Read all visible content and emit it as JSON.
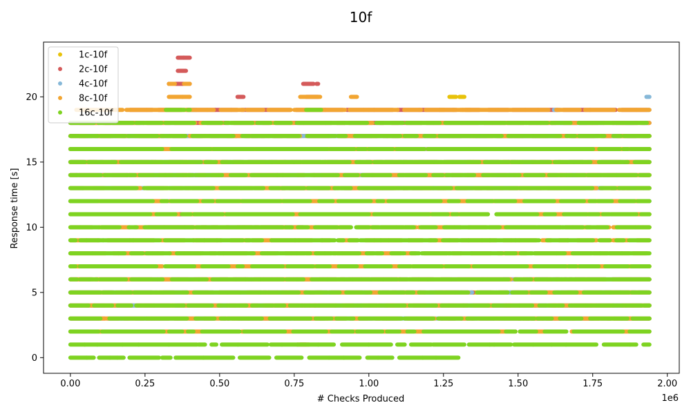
{
  "chart_data": {
    "type": "scatter",
    "title": "10f",
    "xlabel": "# Checks Produced",
    "ylabel": "Response time [s]",
    "x_offset_text": "1e6",
    "x_scale_factor": 1000000,
    "xlim": [
      -90000,
      2040000
    ],
    "ylim": [
      -1.2,
      24.2
    ],
    "x_ticks": [
      0,
      250000,
      500000,
      750000,
      1000000,
      1250000,
      1500000,
      1750000,
      2000000
    ],
    "x_tick_labels": [
      "0.00",
      "0.25",
      "0.50",
      "0.75",
      "1.00",
      "1.25",
      "1.50",
      "1.75",
      "2.00"
    ],
    "y_ticks": [
      0,
      5,
      10,
      15,
      20
    ],
    "y_tick_labels": [
      "0",
      "5",
      "10",
      "15",
      "20"
    ],
    "grid": false,
    "legend_position": "top-left",
    "series": [
      {
        "name": "1c-10f",
        "color": "#e8c20a",
        "segments": [
          [
            0,
            1940000,
            16
          ],
          [
            0,
            1940000,
            17
          ],
          [
            0,
            1940000,
            15
          ],
          [
            0,
            1940000,
            4
          ],
          [
            600000,
            1940000,
            5
          ],
          [
            1200000,
            1940000,
            14
          ],
          [
            1500000,
            1940000,
            3
          ],
          [
            1270000,
            1320000,
            20
          ],
          [
            330000,
            390000,
            21
          ]
        ]
      },
      {
        "name": "2c-10f",
        "color": "#d45a5a",
        "segments": [
          [
            360000,
            400000,
            23
          ],
          [
            360000,
            400000,
            22
          ],
          [
            330000,
            400000,
            21
          ],
          [
            780000,
            830000,
            21
          ],
          [
            790000,
            830000,
            20
          ],
          [
            560000,
            580000,
            20
          ],
          [
            0,
            1940000,
            18
          ],
          [
            0,
            1940000,
            17
          ],
          [
            0,
            1940000,
            16
          ],
          [
            0,
            1940000,
            15
          ],
          [
            0,
            1940000,
            14
          ],
          [
            0,
            1940000,
            5
          ],
          [
            0,
            1940000,
            4
          ],
          [
            0,
            1940000,
            6
          ],
          [
            200000,
            1940000,
            19
          ],
          [
            260000,
            1940000,
            12
          ],
          [
            260000,
            780000,
            10
          ],
          [
            620000,
            640000,
            7
          ],
          [
            0,
            1940000,
            3
          ],
          [
            770000,
            790000,
            1
          ],
          [
            320000,
            840000,
            11
          ],
          [
            700000,
            1900000,
            13
          ]
        ]
      },
      {
        "name": "4c-10f",
        "color": "#86b8d8",
        "segments": [
          [
            1600000,
            1740000,
            18
          ],
          [
            1620000,
            1640000,
            19
          ],
          [
            1860000,
            1940000,
            18
          ],
          [
            1930000,
            1940000,
            20
          ],
          [
            1930000,
            1940000,
            19
          ],
          [
            1780000,
            1860000,
            11
          ],
          [
            1450000,
            1940000,
            6
          ],
          [
            1870000,
            1900000,
            7
          ],
          [
            1600000,
            1640000,
            7
          ],
          [
            0,
            1940000,
            16
          ],
          [
            0,
            1940000,
            14
          ],
          [
            0,
            1940000,
            5
          ],
          [
            0,
            1940000,
            12
          ],
          [
            400000,
            420000,
            19
          ],
          [
            30000,
            1940000,
            17
          ],
          [
            0,
            1940000,
            15
          ],
          [
            0,
            1940000,
            3
          ],
          [
            0,
            1940000,
            4
          ],
          [
            0,
            1940000,
            13
          ]
        ]
      },
      {
        "name": "8c-10f",
        "color": "#f2a531",
        "segments": [
          [
            30000,
            1940000,
            18
          ],
          [
            30000,
            1940000,
            17
          ],
          [
            0,
            1940000,
            16
          ],
          [
            0,
            1940000,
            15
          ],
          [
            0,
            1940000,
            14
          ],
          [
            0,
            1940000,
            5
          ],
          [
            0,
            1940000,
            4
          ],
          [
            0,
            1940000,
            6
          ],
          [
            0,
            1940000,
            3
          ],
          [
            20000,
            1940000,
            19
          ],
          [
            330000,
            400000,
            20
          ],
          [
            330000,
            400000,
            21
          ],
          [
            940000,
            960000,
            20
          ],
          [
            770000,
            840000,
            20
          ],
          [
            1240000,
            1340000,
            19
          ],
          [
            0,
            1940000,
            11
          ],
          [
            0,
            1940000,
            12
          ],
          [
            0,
            1940000,
            13
          ],
          [
            0,
            1940000,
            10
          ],
          [
            0,
            1940000,
            7
          ],
          [
            0,
            1940000,
            8
          ],
          [
            0,
            1940000,
            9
          ],
          [
            0,
            1940000,
            2
          ],
          [
            760000,
            800000,
            1
          ]
        ]
      },
      {
        "name": "16c-10f",
        "color": "#7ed321",
        "segments": [
          [
            0,
            1940000,
            18
          ],
          [
            0,
            1940000,
            17
          ],
          [
            0,
            1940000,
            16
          ],
          [
            0,
            1940000,
            15
          ],
          [
            0,
            1940000,
            14
          ],
          [
            0,
            1940000,
            13
          ],
          [
            0,
            1940000,
            12
          ],
          [
            0,
            1940000,
            11
          ],
          [
            0,
            1940000,
            10
          ],
          [
            0,
            1940000,
            9
          ],
          [
            0,
            1940000,
            8
          ],
          [
            0,
            1940000,
            7
          ],
          [
            0,
            1940000,
            6
          ],
          [
            0,
            1940000,
            5
          ],
          [
            0,
            1940000,
            4
          ],
          [
            0,
            1940000,
            3
          ],
          [
            0,
            1940000,
            2
          ],
          [
            0,
            1940000,
            1
          ],
          [
            0,
            1300000,
            0
          ],
          [
            320000,
            400000,
            19
          ],
          [
            790000,
            840000,
            19
          ]
        ]
      }
    ]
  }
}
